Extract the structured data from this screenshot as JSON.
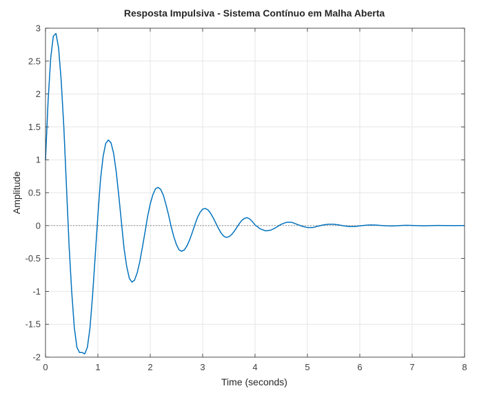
{
  "chart_data": {
    "type": "line",
    "title": "Resposta Impulsiva - Sistema Contínuo em Malha Aberta",
    "xlabel": "Time (seconds)",
    "ylabel": "Amplitude",
    "xlim": [
      0,
      8
    ],
    "ylim": [
      -2,
      3
    ],
    "xticks": [
      "0",
      "1",
      "2",
      "3",
      "4",
      "5",
      "6",
      "7",
      "8"
    ],
    "yticks": [
      "-2",
      "-1.5",
      "-1",
      "-0.5",
      "0",
      "0.5",
      "1",
      "1.5",
      "2",
      "2.5",
      "3"
    ],
    "grid": true,
    "reference_line_y": 0,
    "colors": {
      "series": "#0072BD",
      "axes": "#262626",
      "grid": "#e6e6e6",
      "reference": "#808080"
    },
    "series": [
      {
        "x": [
          0,
          0.05,
          0.1,
          0.15,
          0.2,
          0.25,
          0.3,
          0.35,
          0.4,
          0.45,
          0.5,
          0.55,
          0.6,
          0.65,
          0.7,
          0.75,
          0.8,
          0.85,
          0.9,
          0.95,
          1.0,
          1.05,
          1.1,
          1.15,
          1.2,
          1.25,
          1.3,
          1.35,
          1.4,
          1.45,
          1.5,
          1.55,
          1.6,
          1.65,
          1.7,
          1.75,
          1.8,
          1.85,
          1.9,
          1.95,
          2.0,
          2.05,
          2.1,
          2.15,
          2.2,
          2.25,
          2.3,
          2.35,
          2.4,
          2.45,
          2.5,
          2.55,
          2.6,
          2.65,
          2.7,
          2.75,
          2.8,
          2.85,
          2.9,
          2.95,
          3.0,
          3.05,
          3.1,
          3.15,
          3.2,
          3.25,
          3.3,
          3.35,
          3.4,
          3.45,
          3.5,
          3.55,
          3.6,
          3.65,
          3.7,
          3.75,
          3.8,
          3.85,
          3.9,
          3.95,
          4.0,
          4.1,
          4.2,
          4.3,
          4.4,
          4.5,
          4.6,
          4.7,
          4.8,
          4.9,
          5.0,
          5.1,
          5.2,
          5.3,
          5.4,
          5.5,
          5.6,
          5.7,
          5.8,
          5.9,
          6.0,
          6.1,
          6.2,
          6.3,
          6.4,
          6.5,
          6.6,
          6.7,
          6.8,
          6.9,
          7.0,
          7.1,
          7.2,
          7.3,
          7.4,
          7.5,
          7.6,
          7.7,
          7.8,
          7.9,
          8.0
        ],
        "y": [
          1.0,
          1.9,
          2.55,
          2.88,
          2.92,
          2.7,
          2.2,
          1.5,
          0.6,
          -0.3,
          -1.0,
          -1.55,
          -1.85,
          -1.93,
          -1.93,
          -1.95,
          -1.85,
          -1.55,
          -1.05,
          -0.45,
          0.15,
          0.7,
          1.05,
          1.25,
          1.3,
          1.26,
          1.1,
          0.82,
          0.45,
          0.05,
          -0.35,
          -0.62,
          -0.8,
          -0.86,
          -0.83,
          -0.72,
          -0.55,
          -0.33,
          -0.1,
          0.14,
          0.33,
          0.47,
          0.56,
          0.58,
          0.55,
          0.46,
          0.32,
          0.16,
          -0.02,
          -0.17,
          -0.29,
          -0.37,
          -0.39,
          -0.37,
          -0.31,
          -0.22,
          -0.11,
          0.01,
          0.12,
          0.2,
          0.25,
          0.26,
          0.24,
          0.19,
          0.12,
          0.04,
          -0.04,
          -0.11,
          -0.16,
          -0.18,
          -0.17,
          -0.14,
          -0.09,
          -0.03,
          0.03,
          0.08,
          0.11,
          0.12,
          0.1,
          0.06,
          0.01,
          -0.05,
          -0.08,
          -0.07,
          -0.03,
          0.02,
          0.05,
          0.05,
          0.02,
          -0.01,
          -0.03,
          -0.03,
          -0.01,
          0.01,
          0.02,
          0.02,
          0.01,
          -0.005,
          -0.015,
          -0.015,
          -0.005,
          0.005,
          0.01,
          0.008,
          0.002,
          -0.004,
          -0.006,
          -0.003,
          0.002,
          0.004,
          0.002,
          -0.001,
          -0.003,
          -0.002,
          0.0,
          0.002,
          0.001,
          0.0,
          -0.001,
          0.0,
          0.0
        ]
      }
    ]
  }
}
